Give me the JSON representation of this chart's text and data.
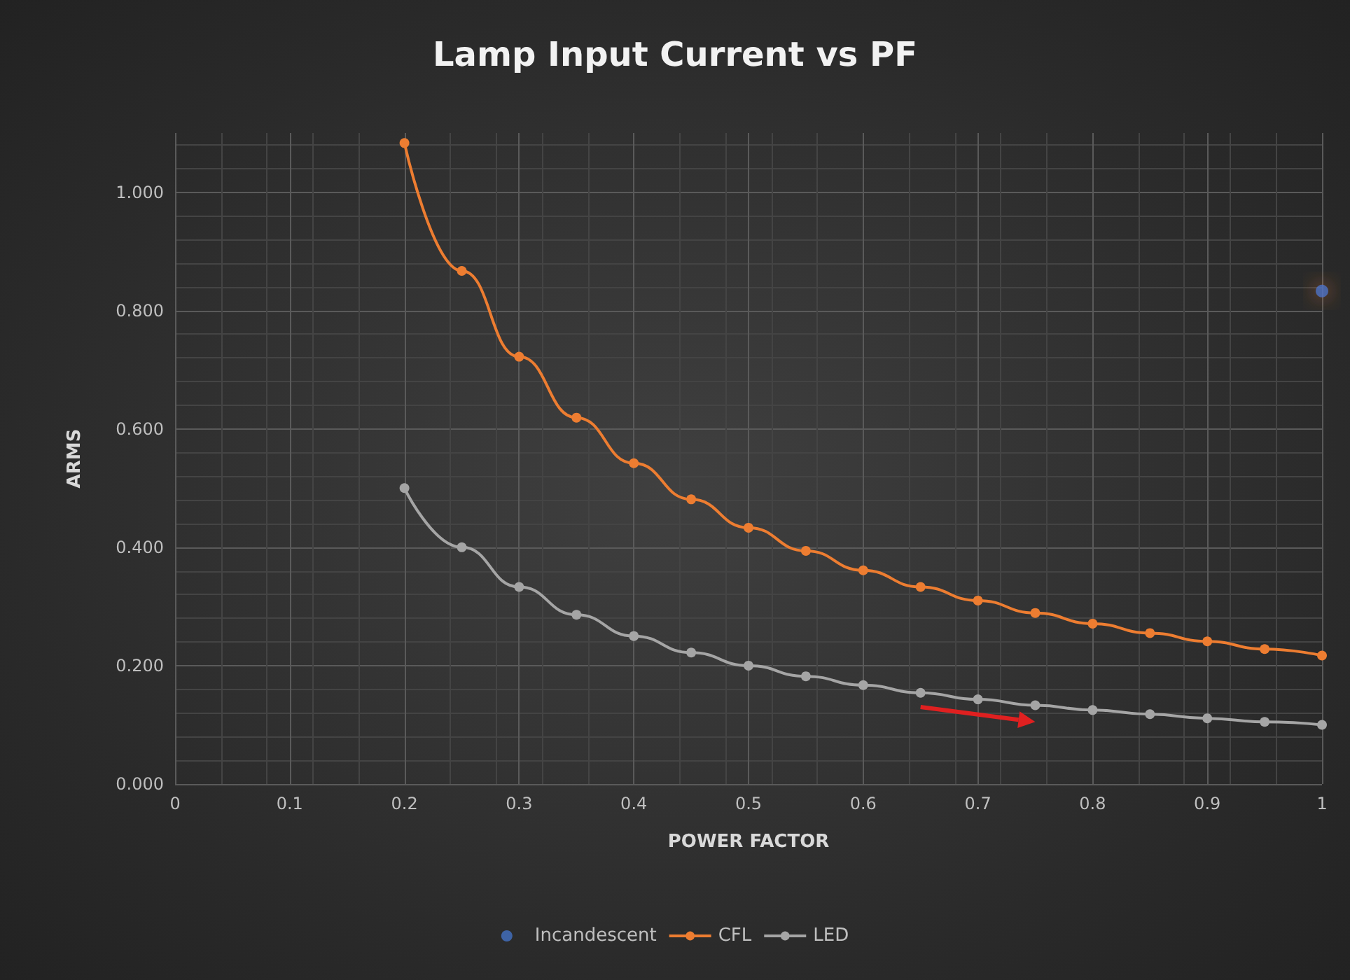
{
  "chart_data": {
    "type": "line",
    "title": "Lamp Input Current vs PF",
    "xlabel": "POWER FACTOR",
    "ylabel": "ARMS",
    "x": [
      0.2,
      0.25,
      0.3,
      0.35,
      0.4,
      0.45,
      0.5,
      0.55,
      0.6,
      0.65,
      0.7,
      0.75,
      0.8,
      0.85,
      0.9,
      0.95,
      1
    ],
    "series": [
      {
        "name": "Incandescent",
        "type": "scatter",
        "color": "#4472c4",
        "x": [
          1
        ],
        "values": [
          0.833
        ]
      },
      {
        "name": "CFL",
        "color": "#ed7d31",
        "values": [
          1.083,
          0.867,
          0.722,
          0.619,
          0.542,
          0.481,
          0.433,
          0.394,
          0.361,
          0.333,
          0.31,
          0.289,
          0.271,
          0.255,
          0.241,
          0.228,
          0.217
        ]
      },
      {
        "name": "LED",
        "color": "#a5a5a5",
        "values": [
          0.5,
          0.4,
          0.333,
          0.286,
          0.25,
          0.222,
          0.2,
          0.182,
          0.167,
          0.154,
          0.143,
          0.133,
          0.125,
          0.118,
          0.111,
          0.105,
          0.1
        ]
      }
    ],
    "xlim": [
      0,
      1
    ],
    "xticks": [
      0,
      0.1,
      0.2,
      0.3,
      0.4,
      0.5,
      0.6,
      0.7,
      0.8,
      0.9,
      1
    ],
    "ylim": [
      0,
      1.1
    ],
    "yticks": [
      {
        "value": 0,
        "label": "0.000"
      },
      {
        "value": 0.2,
        "label": "0.200"
      },
      {
        "value": 0.4,
        "label": "0.400"
      },
      {
        "value": 0.6,
        "label": "0.600"
      },
      {
        "value": 0.8,
        "label": "0.800"
      },
      {
        "value": 1,
        "label": "1.000"
      }
    ],
    "grid": true,
    "legend": "bottom",
    "marker": "circle",
    "line_style": "solid"
  }
}
